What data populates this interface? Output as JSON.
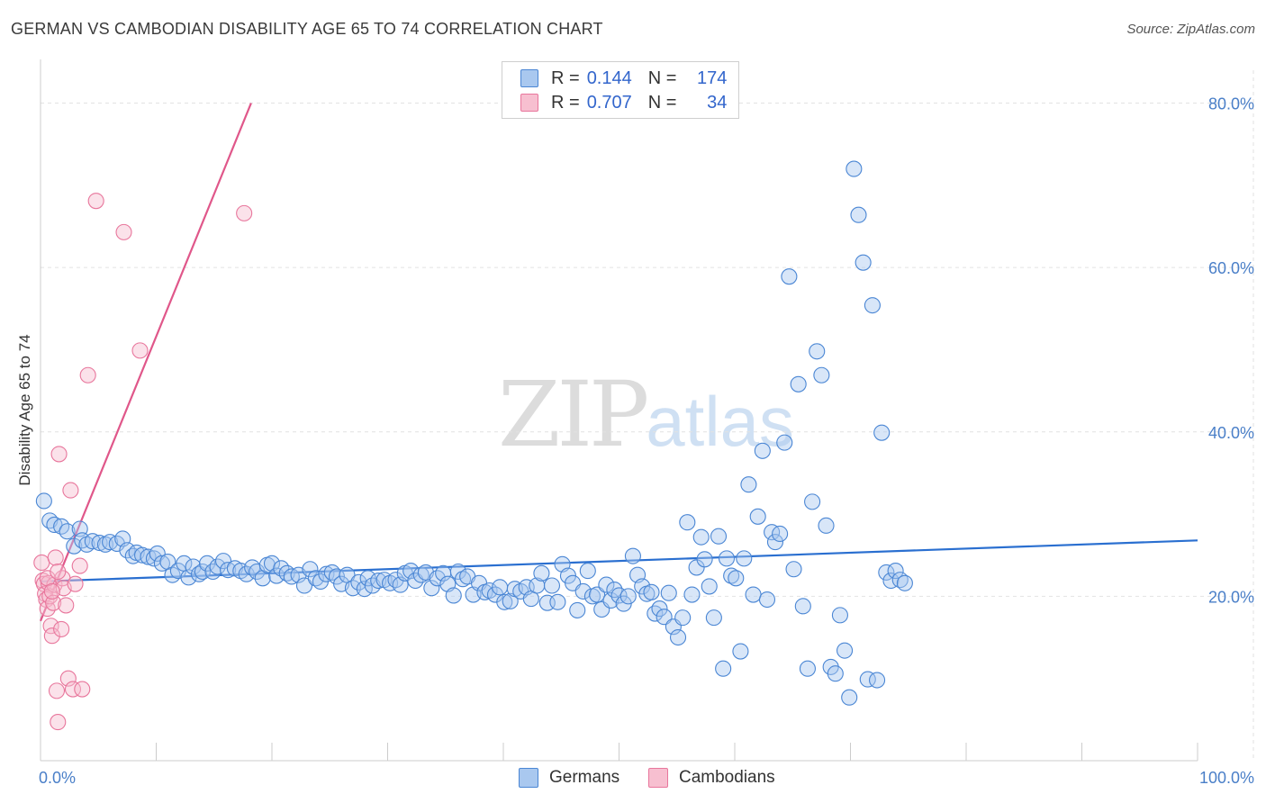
{
  "header": {
    "title": "GERMAN VS CAMBODIAN DISABILITY AGE 65 TO 74 CORRELATION CHART",
    "source": "Source: ZipAtlas.com"
  },
  "watermark": {
    "zip": "ZIP",
    "atlas": "atlas"
  },
  "legend": {
    "rows": [
      {
        "r_label": "R =",
        "r_value": "0.144",
        "n_label": "N =",
        "n_value": "174",
        "color": "#a9c8ef"
      },
      {
        "r_label": "R =",
        "r_value": "0.707",
        "n_label": "N =",
        "n_value": "34",
        "color": "#f7bfd0"
      }
    ]
  },
  "bottom_legend": {
    "germans": {
      "label": "Germans",
      "color": "#a9c8ef"
    },
    "cambodians": {
      "label": "Cambodians",
      "color": "#f7bfd0"
    }
  },
  "chart_data": {
    "type": "scatter",
    "title": "GERMAN VS CAMBODIAN DISABILITY AGE 65 TO 74 CORRELATION CHART",
    "xlabel": "",
    "ylabel": "Disability Age 65 to 74",
    "xlim": [
      0,
      100
    ],
    "ylim": [
      0,
      84
    ],
    "x_tick_labels": [
      "0.0%",
      "100.0%"
    ],
    "y_ticks": [
      20,
      40,
      60,
      80
    ],
    "y_tick_labels": [
      "20.0%",
      "40.0%",
      "60.0%",
      "80.0%"
    ],
    "grid": true,
    "legend_position": "top-center",
    "series": [
      {
        "name": "Germans",
        "color": "#4a86d4",
        "fill": "#a9c8ef",
        "trend": {
          "x": [
            0,
            100
          ],
          "y": [
            21.8,
            26.8
          ],
          "color": "#2a6fd0"
        },
        "points": [
          [
            0.3,
            31.6
          ],
          [
            0.8,
            29.2
          ],
          [
            1.2,
            28.7
          ],
          [
            1.8,
            28.5
          ],
          [
            2.3,
            27.9
          ],
          [
            2.9,
            26.1
          ],
          [
            3.4,
            28.2
          ],
          [
            3.6,
            26.8
          ],
          [
            4.0,
            26.3
          ],
          [
            4.5,
            26.7
          ],
          [
            5.1,
            26.5
          ],
          [
            5.6,
            26.3
          ],
          [
            6.0,
            26.6
          ],
          [
            6.6,
            26.4
          ],
          [
            7.1,
            27.0
          ],
          [
            7.5,
            25.6
          ],
          [
            8.0,
            24.9
          ],
          [
            8.3,
            25.3
          ],
          [
            8.8,
            25.0
          ],
          [
            9.3,
            24.8
          ],
          [
            9.8,
            24.6
          ],
          [
            10.1,
            25.2
          ],
          [
            10.5,
            24.0
          ],
          [
            11.0,
            24.2
          ],
          [
            11.4,
            22.6
          ],
          [
            11.9,
            23.1
          ],
          [
            12.4,
            24.0
          ],
          [
            12.8,
            22.3
          ],
          [
            13.2,
            23.6
          ],
          [
            13.7,
            22.7
          ],
          [
            14.0,
            23.0
          ],
          [
            14.4,
            24.0
          ],
          [
            14.9,
            23.0
          ],
          [
            15.3,
            23.6
          ],
          [
            15.8,
            24.3
          ],
          [
            16.2,
            23.2
          ],
          [
            16.8,
            23.4
          ],
          [
            17.3,
            23.1
          ],
          [
            17.8,
            22.7
          ],
          [
            18.3,
            23.5
          ],
          [
            18.7,
            23.0
          ],
          [
            19.2,
            22.2
          ],
          [
            19.6,
            23.8
          ],
          [
            20.0,
            24.0
          ],
          [
            20.4,
            22.5
          ],
          [
            20.8,
            23.4
          ],
          [
            21.3,
            22.8
          ],
          [
            21.7,
            22.4
          ],
          [
            22.3,
            22.6
          ],
          [
            22.8,
            21.3
          ],
          [
            23.3,
            23.3
          ],
          [
            23.8,
            22.2
          ],
          [
            24.2,
            21.8
          ],
          [
            24.7,
            22.7
          ],
          [
            25.2,
            22.9
          ],
          [
            25.6,
            22.4
          ],
          [
            26.0,
            21.5
          ],
          [
            26.5,
            22.6
          ],
          [
            27.0,
            21.0
          ],
          [
            27.5,
            21.7
          ],
          [
            28.0,
            20.9
          ],
          [
            28.3,
            22.2
          ],
          [
            28.7,
            21.3
          ],
          [
            29.2,
            21.9
          ],
          [
            29.7,
            22.0
          ],
          [
            30.2,
            21.6
          ],
          [
            30.7,
            22.0
          ],
          [
            31.1,
            21.4
          ],
          [
            31.5,
            22.8
          ],
          [
            32.0,
            23.1
          ],
          [
            32.4,
            21.9
          ],
          [
            32.9,
            22.6
          ],
          [
            33.3,
            22.9
          ],
          [
            33.8,
            21.0
          ],
          [
            34.3,
            22.2
          ],
          [
            34.8,
            22.8
          ],
          [
            35.2,
            21.5
          ],
          [
            35.7,
            20.1
          ],
          [
            36.1,
            23.0
          ],
          [
            36.5,
            22.1
          ],
          [
            36.9,
            22.4
          ],
          [
            37.4,
            20.2
          ],
          [
            37.9,
            21.6
          ],
          [
            38.4,
            20.5
          ],
          [
            38.8,
            20.7
          ],
          [
            39.3,
            20.2
          ],
          [
            39.7,
            21.1
          ],
          [
            40.1,
            19.3
          ],
          [
            40.6,
            19.4
          ],
          [
            41.0,
            20.9
          ],
          [
            41.5,
            20.6
          ],
          [
            42.0,
            21.1
          ],
          [
            42.4,
            19.7
          ],
          [
            42.9,
            21.3
          ],
          [
            43.3,
            22.8
          ],
          [
            43.8,
            19.2
          ],
          [
            44.2,
            21.3
          ],
          [
            44.7,
            19.3
          ],
          [
            45.1,
            23.9
          ],
          [
            45.6,
            22.5
          ],
          [
            46.0,
            21.6
          ],
          [
            46.4,
            18.3
          ],
          [
            46.9,
            20.6
          ],
          [
            47.3,
            23.1
          ],
          [
            47.7,
            20.0
          ],
          [
            48.1,
            20.2
          ],
          [
            48.5,
            18.4
          ],
          [
            48.9,
            21.4
          ],
          [
            49.3,
            19.5
          ],
          [
            49.6,
            20.8
          ],
          [
            50.0,
            20.1
          ],
          [
            50.4,
            19.1
          ],
          [
            50.8,
            20.0
          ],
          [
            51.2,
            24.9
          ],
          [
            51.6,
            22.6
          ],
          [
            52.0,
            21.2
          ],
          [
            52.4,
            20.3
          ],
          [
            52.8,
            20.5
          ],
          [
            53.1,
            17.9
          ],
          [
            53.5,
            18.5
          ],
          [
            53.9,
            17.5
          ],
          [
            54.3,
            20.4
          ],
          [
            54.7,
            16.3
          ],
          [
            55.1,
            15.0
          ],
          [
            55.5,
            17.4
          ],
          [
            55.9,
            29.0
          ],
          [
            56.3,
            20.2
          ],
          [
            56.7,
            23.5
          ],
          [
            57.1,
            27.2
          ],
          [
            57.4,
            24.5
          ],
          [
            57.8,
            21.2
          ],
          [
            58.2,
            17.4
          ],
          [
            58.6,
            27.3
          ],
          [
            59.0,
            11.2
          ],
          [
            59.3,
            24.6
          ],
          [
            59.7,
            22.5
          ],
          [
            60.1,
            22.2
          ],
          [
            60.5,
            13.3
          ],
          [
            60.8,
            24.6
          ],
          [
            61.2,
            33.6
          ],
          [
            61.6,
            20.2
          ],
          [
            62.0,
            29.7
          ],
          [
            62.4,
            37.7
          ],
          [
            62.8,
            19.6
          ],
          [
            63.2,
            27.8
          ],
          [
            63.5,
            26.6
          ],
          [
            63.9,
            27.6
          ],
          [
            64.3,
            38.7
          ],
          [
            64.7,
            58.9
          ],
          [
            65.1,
            23.3
          ],
          [
            65.5,
            45.8
          ],
          [
            65.9,
            18.8
          ],
          [
            66.3,
            11.2
          ],
          [
            66.7,
            31.5
          ],
          [
            67.1,
            49.8
          ],
          [
            67.5,
            46.9
          ],
          [
            67.9,
            28.6
          ],
          [
            68.3,
            11.4
          ],
          [
            68.7,
            10.6
          ],
          [
            69.1,
            17.7
          ],
          [
            69.5,
            13.4
          ],
          [
            69.9,
            7.7
          ],
          [
            70.3,
            72.0
          ],
          [
            70.7,
            66.4
          ],
          [
            71.1,
            60.6
          ],
          [
            71.5,
            9.9
          ],
          [
            71.9,
            55.4
          ],
          [
            72.3,
            9.8
          ],
          [
            72.7,
            39.9
          ],
          [
            73.1,
            22.9
          ],
          [
            73.5,
            21.9
          ],
          [
            73.9,
            23.1
          ],
          [
            74.3,
            22.0
          ],
          [
            74.7,
            21.6
          ]
        ]
      },
      {
        "name": "Cambodians",
        "color": "#e8769c",
        "fill": "#f7bfd0",
        "trend": {
          "x": [
            0,
            18.2
          ],
          "y": [
            17.0,
            80.0
          ],
          "color": "#e0578a"
        },
        "points": [
          [
            0.1,
            24.1
          ],
          [
            0.2,
            21.9
          ],
          [
            0.3,
            21.5
          ],
          [
            0.4,
            20.3
          ],
          [
            0.5,
            19.6
          ],
          [
            0.6,
            18.5
          ],
          [
            0.7,
            21.6
          ],
          [
            0.8,
            20.0
          ],
          [
            0.9,
            16.4
          ],
          [
            1.0,
            15.2
          ],
          [
            1.1,
            19.2
          ],
          [
            1.2,
            21.4
          ],
          [
            1.3,
            24.7
          ],
          [
            1.4,
            8.5
          ],
          [
            1.5,
            4.7
          ],
          [
            1.6,
            37.3
          ],
          [
            1.8,
            16.0
          ],
          [
            1.9,
            22.2
          ],
          [
            2.0,
            21.0
          ],
          [
            2.2,
            18.9
          ],
          [
            2.4,
            10.0
          ],
          [
            2.6,
            32.9
          ],
          [
            2.8,
            8.7
          ],
          [
            3.0,
            21.5
          ],
          [
            3.4,
            23.7
          ],
          [
            4.1,
            46.9
          ],
          [
            4.8,
            68.1
          ],
          [
            7.2,
            64.3
          ],
          [
            8.6,
            49.9
          ],
          [
            17.6,
            66.6
          ],
          [
            0.6,
            22.2
          ],
          [
            1.0,
            20.6
          ],
          [
            1.5,
            23.0
          ],
          [
            3.6,
            8.7
          ]
        ]
      }
    ]
  }
}
